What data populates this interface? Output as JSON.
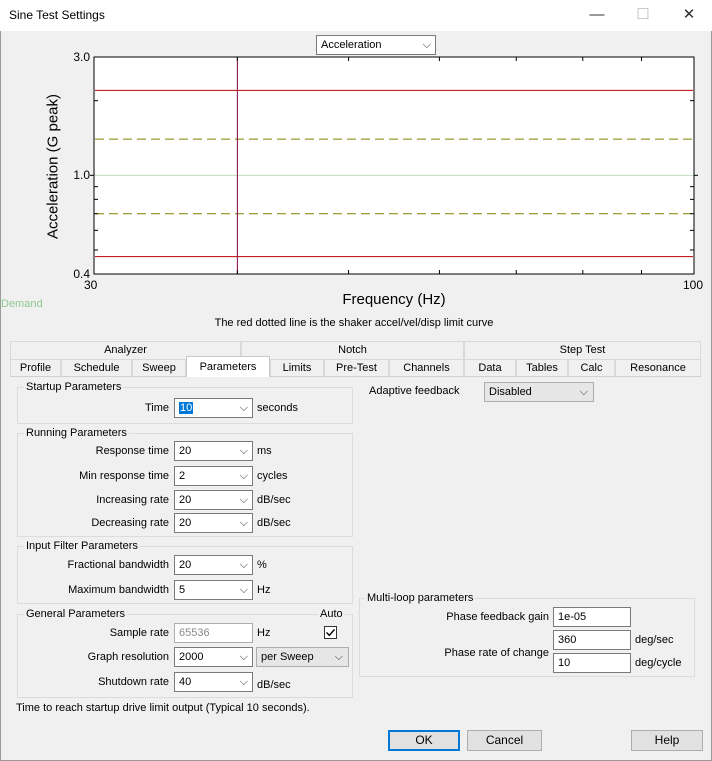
{
  "window": {
    "title": "Sine Test Settings",
    "minimize_glyph": "—",
    "maximize_glyph": "☐",
    "close_glyph": "✕"
  },
  "graph": {
    "selector_value": "Acceleration",
    "ylabel": "Acceleration (G peak)",
    "xlabel": "Frequency (Hz)",
    "y_ticks": [
      "3.0",
      "1.0",
      "0.4"
    ],
    "x_ticks": [
      "30",
      "100"
    ],
    "side_label": "Demand",
    "caption": "The red dotted line is the shaker accel/vel/disp limit curve",
    "colors": {
      "limit": "#c00000",
      "tolerance": "#808000",
      "demand": "#c0dcc0",
      "cursor": "#800040",
      "side_label": "#90c890"
    },
    "chart_data": {
      "type": "line",
      "x_scale": "log",
      "y_scale": "log",
      "xlim": [
        30,
        100
      ],
      "ylim": [
        0.4,
        3.0
      ],
      "grid": false,
      "series": [
        {
          "values": [
            2.2,
            2.2
          ],
          "x": [
            30,
            100
          ]
        },
        {
          "values": [
            1.4,
            1.4
          ],
          "x": [
            30,
            100
          ]
        },
        {
          "values": [
            1.0,
            1.0
          ],
          "x": [
            30,
            100
          ]
        },
        {
          "values": [
            0.7,
            0.7
          ],
          "x": [
            30,
            100
          ]
        },
        {
          "values": [
            0.47,
            0.47
          ],
          "x": [
            30,
            100
          ]
        }
      ],
      "cursor_x": 40
    }
  },
  "tabs": {
    "groups": [
      "Analyzer",
      "Notch",
      "Step Test"
    ],
    "items": [
      "Profile",
      "Schedule",
      "Sweep",
      "Parameters",
      "Limits",
      "Pre-Test",
      "Channels",
      "Data",
      "Tables",
      "Calc",
      "Resonance"
    ],
    "active": "Parameters"
  },
  "startup": {
    "title": "Startup Parameters",
    "time_label": "Time",
    "time_value": "10",
    "time_unit": "seconds"
  },
  "running": {
    "title": "Running Parameters",
    "response_time_label": "Response time",
    "response_time_value": "20",
    "response_time_unit": "ms",
    "min_response_label": "Min response time",
    "min_response_value": "2",
    "min_response_unit": "cycles",
    "increasing_label": "Increasing rate",
    "increasing_value": "20",
    "increasing_unit": "dB/sec",
    "decreasing_label": "Decreasing rate",
    "decreasing_value": "20",
    "decreasing_unit": "dB/sec"
  },
  "input_filter": {
    "title": "Input Filter Parameters",
    "fractional_label": "Fractional bandwidth",
    "fractional_value": "20",
    "fractional_unit": "%",
    "maximum_label": "Maximum bandwidth",
    "maximum_value": "5",
    "maximum_unit": "Hz"
  },
  "general": {
    "title": "General Parameters",
    "auto_label": "Auto",
    "sample_rate_label": "Sample rate",
    "sample_rate_value": "65536",
    "sample_rate_unit": "Hz",
    "graph_res_label": "Graph resolution",
    "graph_res_value": "2000",
    "graph_res_mode": "per Sweep",
    "shutdown_label": "Shutdown rate",
    "shutdown_value": "40",
    "shutdown_unit": "dB/sec"
  },
  "adaptive": {
    "label": "Adaptive feedback",
    "value": "Disabled"
  },
  "multiloop": {
    "title": "Multi-loop parameters",
    "phase_gain_label": "Phase feedback gain",
    "phase_gain_value": "1e-05",
    "phase_rate_label": "Phase rate of change",
    "phase_rate_value1": "360",
    "phase_rate_unit1": "deg/sec",
    "phase_rate_value2": "10",
    "phase_rate_unit2": "deg/cycle"
  },
  "status_text": "Time to reach startup drive limit output (Typical 10 seconds).",
  "buttons": {
    "ok": "OK",
    "cancel": "Cancel",
    "help": "Help"
  }
}
